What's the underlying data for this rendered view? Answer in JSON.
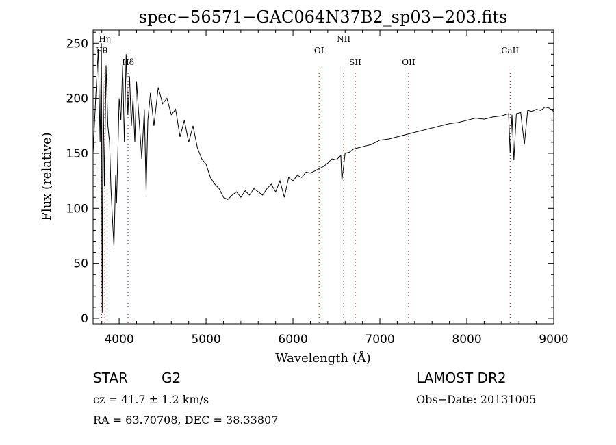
{
  "chart_data": {
    "type": "line",
    "title": "spec−56571−GAC064N37B2_sp03−203.fits",
    "xlabel": "Wavelength (Å)",
    "ylabel": "Flux (relative)",
    "xlim": [
      3700,
      9000
    ],
    "ylim": [
      -5,
      262
    ],
    "x_ticks": [
      4000,
      5000,
      6000,
      7000,
      8000,
      9000
    ],
    "y_ticks": [
      0,
      50,
      100,
      150,
      200,
      250
    ],
    "grid": false,
    "series": [
      {
        "x": [
          3700,
          3730,
          3760,
          3780,
          3795,
          3805,
          3815,
          3830,
          3850,
          3870,
          3890,
          3905,
          3920,
          3940,
          3960,
          3970,
          3985,
          4000,
          4020,
          4040,
          4060,
          4080,
          4100,
          4120,
          4140,
          4160,
          4180,
          4200,
          4230,
          4260,
          4290,
          4310,
          4330,
          4360,
          4400,
          4450,
          4500,
          4550,
          4600,
          4650,
          4700,
          4750,
          4800,
          4850,
          4900,
          4950,
          5000,
          5050,
          5100,
          5150,
          5200,
          5250,
          5300,
          5350,
          5400,
          5450,
          5500,
          5550,
          5600,
          5650,
          5700,
          5750,
          5800,
          5850,
          5900,
          5950,
          6000,
          6050,
          6100,
          6150,
          6200,
          6250,
          6300,
          6350,
          6400,
          6450,
          6500,
          6550,
          6563,
          6600,
          6650,
          6700,
          6750,
          6800,
          6900,
          7000,
          7100,
          7200,
          7300,
          7400,
          7500,
          7600,
          7700,
          7800,
          7900,
          8000,
          8100,
          8200,
          8300,
          8400,
          8480,
          8498,
          8520,
          8542,
          8570,
          8620,
          8662,
          8700,
          8750,
          8800,
          8850,
          8900,
          8950,
          9000
        ],
        "y": [
          150,
          200,
          245,
          160,
          250,
          5,
          215,
          120,
          230,
          175,
          160,
          120,
          95,
          65,
          130,
          105,
          150,
          200,
          180,
          230,
          160,
          240,
          185,
          220,
          175,
          200,
          160,
          215,
          180,
          145,
          190,
          115,
          180,
          205,
          175,
          210,
          195,
          200,
          185,
          190,
          165,
          180,
          160,
          175,
          155,
          145,
          140,
          128,
          122,
          118,
          110,
          108,
          112,
          115,
          110,
          116,
          112,
          118,
          115,
          112,
          118,
          122,
          115,
          125,
          110,
          128,
          125,
          130,
          128,
          133,
          132,
          134,
          136,
          138,
          141,
          145,
          144,
          148,
          125,
          150,
          151,
          154,
          155,
          156,
          158,
          162,
          163,
          165,
          167,
          169,
          171,
          173,
          175,
          177,
          178,
          180,
          182,
          181,
          183,
          184,
          186,
          150,
          185,
          144,
          186,
          187,
          158,
          189,
          188,
          190,
          189,
          192,
          191,
          188
        ]
      }
    ],
    "line_labels": [
      {
        "label": "Hη",
        "x": 3835,
        "dotted": true
      },
      {
        "label": "Hθ",
        "x": 3797,
        "dotted": true
      },
      {
        "label": "Hδ",
        "x": 4102,
        "dotted": true
      },
      {
        "label": "OI",
        "x": 6300,
        "dotted": true
      },
      {
        "label": "NII",
        "x": 6583,
        "dotted": true
      },
      {
        "label": "SII",
        "x": 6716,
        "dotted": true
      },
      {
        "label": "OII",
        "x": 7330,
        "dotted": true
      },
      {
        "label": "CaII",
        "x": 8498,
        "dotted": true
      }
    ]
  },
  "info": {
    "obj_type": "STAR",
    "subclass": "G2",
    "survey": "LAMOST DR2",
    "cz": "cz = 41.7 ± 1.2 km/s",
    "obs_date": "Obs−Date: 20131005",
    "coords": "RA =  63.70708, DEC =  38.33807"
  }
}
